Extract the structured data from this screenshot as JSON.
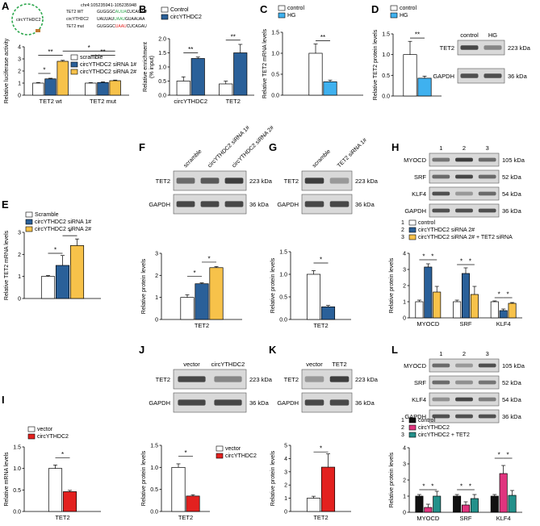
{
  "colors": {
    "white": "#ffffff",
    "blue": "#2a6099",
    "lightblue": "#3fb1ef",
    "yellow": "#f7c24a",
    "red": "#e3211f",
    "black": "#111111",
    "magenta": "#e0347e",
    "teal": "#23908a"
  },
  "panelA": {
    "coord": "chr4:105235941-105235948",
    "circ_label": "circYTHDC2",
    "seqs": [
      {
        "name": "TET2 WT",
        "a": "GUGGGC",
        "b": "AUUA",
        "c": "CUCAGAU",
        "color": "#2fa84f"
      },
      {
        "name": "circYTHDC2",
        "a": "UAUUAU",
        "b": "UAAU",
        "c": "GUAAUAA",
        "color": "#2fa84f"
      },
      {
        "name": "TET2 mut",
        "a": "GUGGGC",
        "b": "UAAU",
        "c": "CUCAGAU",
        "color": "#e3211f"
      }
    ]
  },
  "panelE": {
    "legend": [
      "Scramble",
      "circYTHDC2 siRNA 1#",
      "circYTHDC2 siRNA 2#"
    ]
  },
  "panelF": {
    "lanes": [
      "scramble",
      "circYTHDC2 siRNA 1#",
      "circYTHDC2 siRNA 2#"
    ],
    "bands": [
      "TET2",
      "GAPDH"
    ],
    "kda": [
      "223 kDa",
      "36 kDa"
    ]
  },
  "panelG": {
    "lanes": [
      "scramble",
      "TET2 siRNA 1#"
    ],
    "bands": [
      "TET2",
      "GAPDH"
    ],
    "kda": [
      "223 kDa",
      "36 kDa"
    ]
  },
  "panelH": {
    "lanes": [
      "1",
      "2",
      "3"
    ],
    "bands": [
      "MYOCD",
      "SRF",
      "KLF4",
      "GAPDH"
    ],
    "kda": [
      "105 kDa",
      "52 kDa",
      "54 kDa",
      "36 kDa"
    ],
    "legend": [
      "1 control",
      "2 circYTHDC2 siRNA 2#",
      "3 circYTHDC2 siRNA 2# + TET2 siRNA"
    ]
  },
  "panelJ": {
    "lanes": [
      "vector",
      "circYTHDC2"
    ],
    "bands": [
      "TET2",
      "GAPDH"
    ],
    "kda": [
      "223 kDa",
      "36 kDa"
    ]
  },
  "panelK": {
    "lanes": [
      "vector",
      "TET2"
    ],
    "bands": [
      "TET2",
      "GAPDH"
    ],
    "kda": [
      "223 kDa",
      "36 kDa"
    ]
  },
  "panelL": {
    "lanes": [
      "1",
      "2",
      "3"
    ],
    "bands": [
      "MYOCD",
      "SRF",
      "KLF4",
      "GAPDH"
    ],
    "kda": [
      "105 kDa",
      "52 kDa",
      "54 kDa",
      "36 kDa"
    ],
    "legend": [
      "1 control",
      "2 circYTHDC2",
      "3 circYTHDC2 + TET2"
    ]
  },
  "chart_data": [
    {
      "id": "A",
      "type": "bar",
      "letter": "A",
      "ylabel": "Relative luciferase activity",
      "ylim": [
        0,
        4
      ],
      "yticks": [
        0,
        1,
        2,
        3,
        4
      ],
      "decimals": 0,
      "categories": [
        "TET2 wt",
        "TET2 mut"
      ],
      "series": [
        {
          "name": "scramble",
          "color": "white",
          "values": [
            1.0,
            1.0
          ],
          "errors": [
            0.05,
            0.04
          ]
        },
        {
          "name": "circYTHDC2 siRNA 1#",
          "color": "blue",
          "values": [
            1.35,
            1.05
          ],
          "errors": [
            0.05,
            0.05
          ]
        },
        {
          "name": "circYTHDC2 siRNA 2#",
          "color": "yellow",
          "values": [
            2.8,
            1.2
          ],
          "errors": [
            0.08,
            0.05
          ]
        }
      ],
      "legend_pos": "right",
      "sig": [
        {
          "from": [
            0,
            0
          ],
          "to": [
            0,
            1
          ],
          "y": 1.8,
          "label": "*"
        },
        {
          "from": [
            0,
            0
          ],
          "to": [
            0,
            2
          ],
          "y": 3.3,
          "label": "**"
        },
        {
          "from": [
            0,
            2
          ],
          "to": [
            1,
            2
          ],
          "y": 3.65,
          "label": "*"
        },
        {
          "from": [
            1,
            0
          ],
          "to": [
            1,
            2
          ],
          "y": 3.3,
          "label": "**"
        }
      ]
    },
    {
      "id": "B",
      "type": "bar",
      "letter": "B",
      "ylabel": "Relative enrichment\n(% input)",
      "ylim": [
        0,
        2.0
      ],
      "yticks": [
        0,
        0.5,
        1.0,
        1.5,
        2.0
      ],
      "decimals": 1,
      "categories": [
        "circYTHDC2",
        "TET2"
      ],
      "series": [
        {
          "name": "Control",
          "color": "white",
          "values": [
            0.5,
            0.4
          ],
          "errors": [
            0.15,
            0.1
          ]
        },
        {
          "name": "circYTHDC2",
          "color": "blue",
          "values": [
            1.3,
            1.5
          ],
          "errors": [
            0.05,
            0.3
          ]
        }
      ],
      "legend_pos": "top",
      "sig": [
        {
          "from": [
            0,
            0
          ],
          "to": [
            0,
            1
          ],
          "y": 1.5,
          "label": "**"
        },
        {
          "from": [
            1,
            0
          ],
          "to": [
            1,
            1
          ],
          "y": 1.95,
          "label": "**"
        }
      ]
    },
    {
      "id": "C",
      "type": "bar",
      "letter": "C",
      "ylabel": "Relative TET2 mRNA levels",
      "ylim": [
        0,
        1.5
      ],
      "yticks": [
        0,
        0.5,
        1.0,
        1.5
      ],
      "decimals": 1,
      "categories": [
        ""
      ],
      "series": [
        {
          "name": "control",
          "color": "white",
          "values": [
            1.0
          ],
          "errors": [
            0.22
          ]
        },
        {
          "name": "HG",
          "color": "lightblue",
          "values": [
            0.32
          ],
          "errors": [
            0.04
          ]
        }
      ],
      "legend_pos": "top",
      "sig": [
        {
          "from": [
            0,
            0
          ],
          "to": [
            0,
            1
          ],
          "y": 1.3,
          "label": "**"
        }
      ]
    },
    {
      "id": "D",
      "type": "bar",
      "letter": "D",
      "ylabel": "Relative TET2 protein levels",
      "ylim": [
        0,
        1.5
      ],
      "yticks": [
        0,
        0.5,
        1.0,
        1.5
      ],
      "decimals": 1,
      "categories": [
        ""
      ],
      "series": [
        {
          "name": "control",
          "color": "white",
          "values": [
            1.0
          ],
          "errors": [
            0.32
          ]
        },
        {
          "name": "HG",
          "color": "lightblue",
          "values": [
            0.43
          ],
          "errors": [
            0.05
          ]
        }
      ],
      "legend_pos": "top",
      "blot": {
        "lanes": [
          "control",
          "HG"
        ],
        "bands": [
          "TET2",
          "GAPDH"
        ],
        "kda": [
          "223 kDa",
          "36 kDa"
        ]
      },
      "sig": [
        {
          "from": [
            0,
            0
          ],
          "to": [
            0,
            1
          ],
          "y": 1.4,
          "label": "**"
        }
      ]
    },
    {
      "id": "E",
      "type": "bar",
      "letter": "E",
      "ylabel": "Relative TET2 mRNA levels",
      "ylim": [
        0,
        3
      ],
      "yticks": [
        0,
        1,
        2,
        3
      ],
      "decimals": 0,
      "categories": [
        ""
      ],
      "series": [
        {
          "name": "Scramble",
          "color": "white",
          "values": [
            1.0
          ],
          "errors": [
            0.04
          ]
        },
        {
          "name": "circYTHDC2 siRNA 1#",
          "color": "blue",
          "values": [
            1.5
          ],
          "errors": [
            0.45
          ]
        },
        {
          "name": "circYTHDC2 siRNA 2#",
          "color": "yellow",
          "values": [
            2.4
          ],
          "errors": [
            0.3
          ]
        }
      ],
      "sig": [
        {
          "from": [
            0,
            0
          ],
          "to": [
            0,
            1
          ],
          "y": 2.05,
          "label": "*"
        },
        {
          "from": [
            0,
            1
          ],
          "to": [
            0,
            2
          ],
          "y": 2.85,
          "label": "*"
        }
      ]
    },
    {
      "id": "F",
      "type": "bar",
      "letter": "F",
      "ylabel": "Relative protein levels",
      "ylim": [
        0,
        3
      ],
      "yticks": [
        0,
        1,
        2,
        3
      ],
      "decimals": 0,
      "categories": [
        "TET2"
      ],
      "series": [
        {
          "name": "scramble",
          "color": "white",
          "values": [
            1.0
          ],
          "errors": [
            0.12
          ]
        },
        {
          "name": "circYTHDC2 siRNA 1#",
          "color": "blue",
          "values": [
            1.62
          ],
          "errors": [
            0.04
          ]
        },
        {
          "name": "circYTHDC2 siRNA 2#",
          "color": "yellow",
          "values": [
            2.35
          ],
          "errors": [
            0.05
          ]
        }
      ],
      "sig": [
        {
          "from": [
            0,
            0
          ],
          "to": [
            0,
            1
          ],
          "y": 1.95,
          "label": "*"
        },
        {
          "from": [
            0,
            1
          ],
          "to": [
            0,
            2
          ],
          "y": 2.6,
          "label": "*"
        }
      ]
    },
    {
      "id": "G",
      "type": "bar",
      "letter": "G",
      "ylabel": "Relative protein levels",
      "ylim": [
        0,
        1.5
      ],
      "yticks": [
        0,
        0.5,
        1.0,
        1.5
      ],
      "decimals": 1,
      "categories": [
        "TET2"
      ],
      "series": [
        {
          "name": "scramble",
          "color": "white",
          "values": [
            1.0
          ],
          "errors": [
            0.08
          ]
        },
        {
          "name": "TET2 siRNA 1#",
          "color": "blue",
          "values": [
            0.28
          ],
          "errors": [
            0.03
          ]
        }
      ],
      "sig": [
        {
          "from": [
            0,
            0
          ],
          "to": [
            0,
            1
          ],
          "y": 1.25,
          "label": "*"
        }
      ]
    },
    {
      "id": "H",
      "type": "bar",
      "letter": "",
      "ylabel": "Relative protein levels",
      "ylim": [
        0,
        4
      ],
      "yticks": [
        0,
        1,
        2,
        3,
        4
      ],
      "decimals": 0,
      "categories": [
        "MYOCD",
        "SRF",
        "KLF4"
      ],
      "series": [
        {
          "name": "control",
          "color": "white",
          "values": [
            1.0,
            1.0,
            1.0
          ],
          "errors": [
            0.1,
            0.1,
            0.05
          ]
        },
        {
          "name": "circYTHDC2 siRNA 2#",
          "color": "blue",
          "values": [
            3.15,
            2.75,
            0.45
          ],
          "errors": [
            0.2,
            0.35,
            0.1
          ]
        },
        {
          "name": "circYTHDC2 siRNA 2# + TET2 siRNA",
          "color": "yellow",
          "values": [
            1.6,
            1.45,
            0.9
          ],
          "errors": [
            0.35,
            0.5,
            0.05
          ]
        }
      ],
      "sig": [
        {
          "from": [
            0,
            0
          ],
          "to": [
            0,
            1
          ],
          "y": 3.6,
          "label": "*"
        },
        {
          "from": [
            0,
            1
          ],
          "to": [
            0,
            2
          ],
          "y": 3.6,
          "label": "*"
        },
        {
          "from": [
            1,
            0
          ],
          "to": [
            1,
            1
          ],
          "y": 3.3,
          "label": "*"
        },
        {
          "from": [
            1,
            1
          ],
          "to": [
            1,
            2
          ],
          "y": 3.3,
          "label": "*"
        },
        {
          "from": [
            2,
            0
          ],
          "to": [
            2,
            1
          ],
          "y": 1.25,
          "label": "*"
        },
        {
          "from": [
            2,
            1
          ],
          "to": [
            2,
            2
          ],
          "y": 1.25,
          "label": "*"
        }
      ]
    },
    {
      "id": "I",
      "type": "bar",
      "letter": "I",
      "ylabel": "Relative mRNA levels",
      "ylim": [
        0,
        1.5
      ],
      "yticks": [
        0,
        0.5,
        1.0,
        1.5
      ],
      "decimals": 1,
      "categories": [
        "TET2"
      ],
      "series": [
        {
          "name": "vector",
          "color": "white",
          "values": [
            1.0
          ],
          "errors": [
            0.08
          ]
        },
        {
          "name": "circYTHDC2",
          "color": "red",
          "values": [
            0.46
          ],
          "errors": [
            0.03
          ]
        }
      ],
      "legend_pos": "top",
      "sig": [
        {
          "from": [
            0,
            0
          ],
          "to": [
            0,
            1
          ],
          "y": 1.25,
          "label": "*"
        }
      ]
    },
    {
      "id": "J",
      "type": "bar",
      "letter": "",
      "ylabel": "Relative protein levels",
      "ylim": [
        0,
        1.5
      ],
      "yticks": [
        0,
        0.5,
        1.0,
        1.5
      ],
      "decimals": 1,
      "categories": [
        "TET2"
      ],
      "series": [
        {
          "name": "vector",
          "color": "white",
          "values": [
            1.0
          ],
          "errors": [
            0.08
          ]
        },
        {
          "name": "circYTHDC2",
          "color": "red",
          "values": [
            0.35
          ],
          "errors": [
            0.03
          ]
        }
      ],
      "legend_pos": "right",
      "sig": [
        {
          "from": [
            0,
            0
          ],
          "to": [
            0,
            1
          ],
          "y": 1.25,
          "label": "*"
        }
      ]
    },
    {
      "id": "K",
      "type": "bar",
      "letter": "",
      "ylabel": "Relative protein levels",
      "ylim": [
        0,
        5
      ],
      "yticks": [
        0,
        1,
        2,
        3,
        4,
        5
      ],
      "decimals": 0,
      "categories": [
        "TET2"
      ],
      "series": [
        {
          "name": "vector",
          "color": "white",
          "values": [
            1.0
          ],
          "errors": [
            0.15
          ]
        },
        {
          "name": "TET2",
          "color": "red",
          "values": [
            3.35
          ],
          "errors": [
            1.0
          ]
        }
      ],
      "sig": [
        {
          "from": [
            0,
            0
          ],
          "to": [
            0,
            1
          ],
          "y": 4.5,
          "label": "*"
        }
      ]
    },
    {
      "id": "L",
      "type": "bar",
      "letter": "",
      "ylabel": "Relative protein levels",
      "ylim": [
        0,
        4
      ],
      "yticks": [
        0,
        1,
        2,
        3,
        4
      ],
      "decimals": 0,
      "categories": [
        "MYOCD",
        "SRF",
        "KLF4"
      ],
      "series": [
        {
          "name": "control",
          "color": "black",
          "values": [
            1.0,
            1.0,
            1.0
          ],
          "errors": [
            0.1,
            0.1,
            0.1
          ]
        },
        {
          "name": "circYTHDC2",
          "color": "magenta",
          "values": [
            0.3,
            0.45,
            2.4
          ],
          "errors": [
            0.2,
            0.2,
            0.5
          ]
        },
        {
          "name": "circYTHDC2 + TET2",
          "color": "teal",
          "values": [
            1.0,
            0.85,
            1.05
          ],
          "errors": [
            0.3,
            0.25,
            0.3
          ]
        }
      ],
      "sig": [
        {
          "from": [
            0,
            0
          ],
          "to": [
            0,
            1
          ],
          "y": 1.4,
          "label": "*"
        },
        {
          "from": [
            0,
            1
          ],
          "to": [
            0,
            2
          ],
          "y": 1.4,
          "label": "*"
        },
        {
          "from": [
            1,
            0
          ],
          "to": [
            1,
            1
          ],
          "y": 1.4,
          "label": "*"
        },
        {
          "from": [
            1,
            1
          ],
          "to": [
            1,
            2
          ],
          "y": 1.4,
          "label": "*"
        },
        {
          "from": [
            2,
            0
          ],
          "to": [
            2,
            1
          ],
          "y": 3.35,
          "label": "*"
        },
        {
          "from": [
            2,
            1
          ],
          "to": [
            2,
            2
          ],
          "y": 3.35,
          "label": "*"
        }
      ]
    }
  ]
}
